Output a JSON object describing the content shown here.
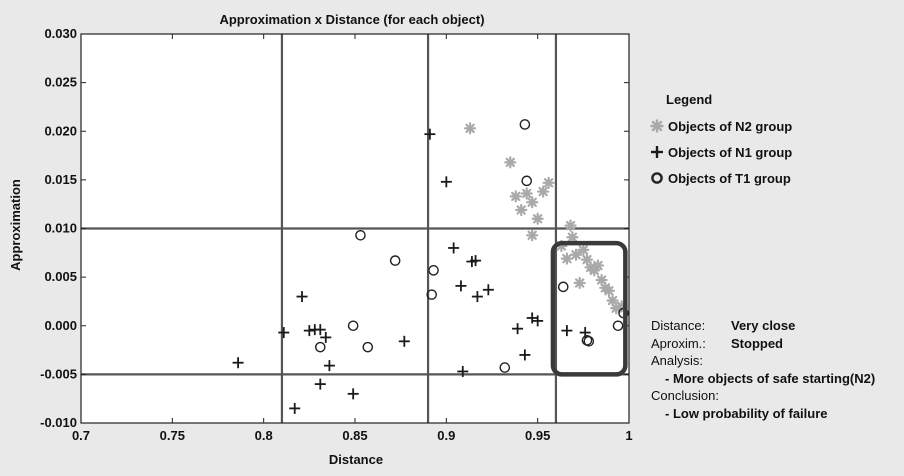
{
  "chart_data": {
    "type": "scatter",
    "title": "Approximation x Distance (for each object)",
    "xlabel": "Distance",
    "ylabel": "Approximation",
    "xlim": [
      0.7,
      1.0
    ],
    "ylim": [
      -0.01,
      0.03
    ],
    "xticks": [
      "0.7",
      "0.75",
      "0.8",
      "0.85",
      "0.9",
      "0.95",
      "1"
    ],
    "yticks": [
      "-0.010",
      "-0.005",
      "0.000",
      "0.005",
      "0.010",
      "0.015",
      "0.020",
      "0.025",
      "0.030"
    ],
    "grid": false,
    "legend_position": "right",
    "reference_lines": {
      "vertical": [
        0.81,
        0.89,
        0.96
      ],
      "horizontal": [
        -0.005,
        0.01
      ]
    },
    "highlight_region": {
      "x": [
        0.96,
        0.998
      ],
      "y": [
        -0.005,
        0.0085
      ]
    },
    "series": [
      {
        "name": "Objects of N2 group",
        "marker": "*",
        "color": "#a9a9a9",
        "points": [
          [
            0.913,
            0.0203
          ],
          [
            0.935,
            0.0168
          ],
          [
            0.938,
            0.0133
          ],
          [
            0.941,
            0.0119
          ],
          [
            0.944,
            0.0136
          ],
          [
            0.947,
            0.0127
          ],
          [
            0.95,
            0.011
          ],
          [
            0.953,
            0.0138
          ],
          [
            0.956,
            0.0147
          ],
          [
            0.947,
            0.0093
          ],
          [
            0.963,
            0.0082
          ],
          [
            0.966,
            0.0069
          ],
          [
            0.968,
            0.0103
          ],
          [
            0.969,
            0.0091
          ],
          [
            0.971,
            0.0073
          ],
          [
            0.973,
            0.0044
          ],
          [
            0.975,
            0.0078
          ],
          [
            0.977,
            0.0068
          ],
          [
            0.979,
            0.006
          ],
          [
            0.981,
            0.0057
          ],
          [
            0.983,
            0.0062
          ],
          [
            0.985,
            0.0047
          ],
          [
            0.987,
            0.0039
          ],
          [
            0.989,
            0.0036
          ],
          [
            0.991,
            0.0026
          ],
          [
            0.993,
            0.0018
          ],
          [
            0.996,
            0.002
          ]
        ]
      },
      {
        "name": "Objects of N1 group",
        "marker": "+",
        "color": "#1a1a1a",
        "points": [
          [
            0.786,
            -0.0038
          ],
          [
            0.811,
            -0.0007
          ],
          [
            0.817,
            -0.0085
          ],
          [
            0.821,
            0.003
          ],
          [
            0.825,
            -0.0005
          ],
          [
            0.828,
            -0.0004
          ],
          [
            0.831,
            -0.0004
          ],
          [
            0.831,
            -0.006
          ],
          [
            0.834,
            -0.0012
          ],
          [
            0.836,
            -0.0041
          ],
          [
            0.849,
            -0.007
          ],
          [
            0.877,
            -0.0016
          ],
          [
            0.891,
            0.0197
          ],
          [
            0.9,
            0.0148
          ],
          [
            0.904,
            0.008
          ],
          [
            0.908,
            0.0041
          ],
          [
            0.909,
            -0.0047
          ],
          [
            0.914,
            0.0066
          ],
          [
            0.916,
            0.0067
          ],
          [
            0.917,
            0.003
          ],
          [
            0.923,
            0.0037
          ],
          [
            0.939,
            -0.0003
          ],
          [
            0.943,
            -0.003
          ],
          [
            0.947,
            0.0008
          ],
          [
            0.95,
            0.0005
          ],
          [
            0.966,
            -0.0005
          ],
          [
            0.976,
            -0.0007
          ]
        ]
      },
      {
        "name": "Objects of T1 group",
        "marker": "o",
        "color": "#222222",
        "points": [
          [
            0.849,
            0.0
          ],
          [
            0.853,
            0.0093
          ],
          [
            0.857,
            -0.0022
          ],
          [
            0.831,
            -0.0022
          ],
          [
            0.872,
            0.0067
          ],
          [
            0.893,
            0.0057
          ],
          [
            0.892,
            0.0032
          ],
          [
            0.932,
            -0.0043
          ],
          [
            0.943,
            0.0207
          ],
          [
            0.944,
            0.0149
          ],
          [
            0.964,
            0.004
          ],
          [
            0.977,
            -0.0015
          ],
          [
            0.978,
            -0.0016
          ],
          [
            0.994,
            0.0
          ],
          [
            0.997,
            0.0013
          ]
        ]
      }
    ]
  },
  "legend": {
    "title": "Legend",
    "items": [
      "Objects of N2 group",
      "Objects of N1 group",
      "Objects of T1 group"
    ]
  },
  "info": {
    "distance_key": "Distance:",
    "distance_val": "Very close",
    "aprox_key": "Aproxim.:",
    "aprox_val": "Stopped",
    "analysis_key": "Analysis:",
    "analysis_val": "- More objects of safe starting(N2)",
    "conclusion_key": "Conclusion:",
    "conclusion_val": "- Low probability of failure"
  }
}
